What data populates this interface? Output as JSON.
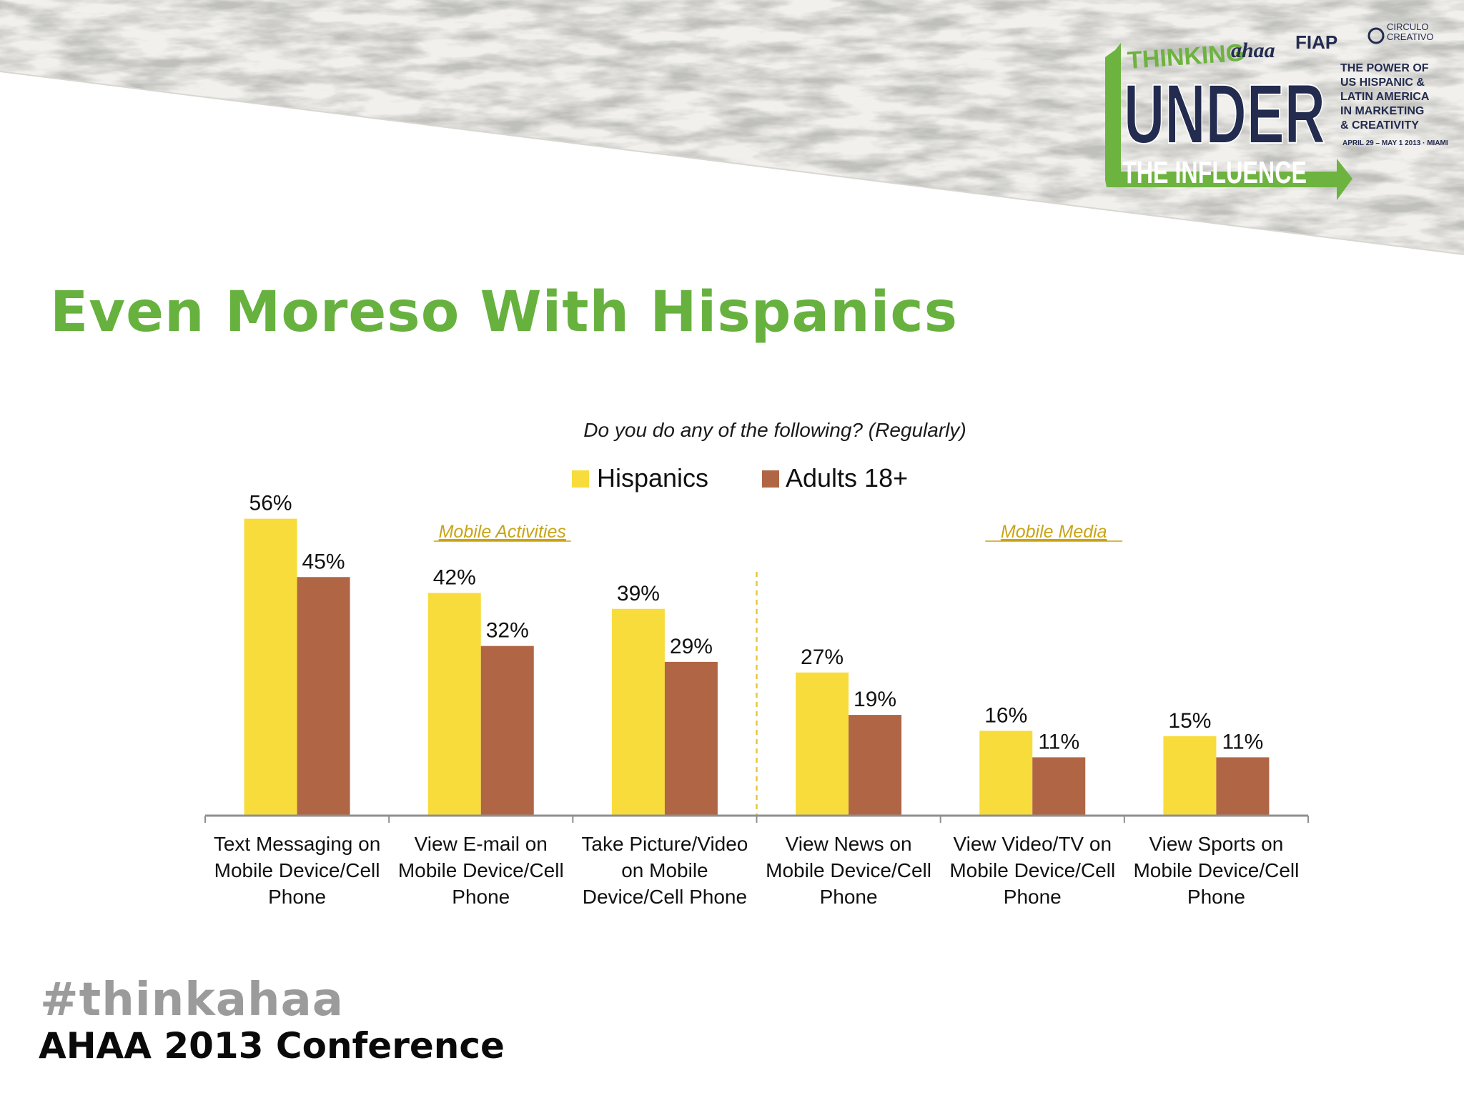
{
  "slide": {
    "title": "Even Moreso With Hispanics",
    "hashtag": "#thinkahaa",
    "conference": "AHAA 2013 Conference"
  },
  "logo": {
    "top_line": "THINKING",
    "main_word": "UNDER",
    "bottom_line": "THE INFLUENCE",
    "brand_ahaa": "ahaa",
    "brand_fiap": "FIAP",
    "brand_circulo_1": "CIRCULO",
    "brand_circulo_2": "CREATIVO",
    "tagline": [
      "THE POWER OF",
      "US HISPANIC &",
      "LATIN AMERICA",
      "IN MARKETING",
      "& CREATIVITY"
    ],
    "dates": "APRIL 29 – MAY 1 2013 · MIAMI",
    "colors": {
      "green": "#6db33f",
      "navy": "#232b4f"
    }
  },
  "colors": {
    "title_green": "#67b13f",
    "hispanics": "#f7dc3c",
    "adults": "#b06545",
    "section_label": "#c9a416",
    "divider": "#e7c63e",
    "axis": "#8f8f8f"
  },
  "chart_data": {
    "type": "bar",
    "title": "Do you do any of the following? (Regularly)",
    "xlabel": "",
    "ylabel": "",
    "ylim": [
      0,
      60
    ],
    "grid": false,
    "legend_position": "top-center",
    "categories": [
      [
        "Text Messaging on",
        "Mobile Device/Cell",
        "Phone"
      ],
      [
        "View E-mail on",
        "Mobile Device/Cell",
        "Phone"
      ],
      [
        "Take Picture/Video",
        "on Mobile",
        "Device/Cell Phone"
      ],
      [
        "View News on",
        "Mobile Device/Cell",
        "Phone"
      ],
      [
        "View Video/TV on",
        "Mobile Device/Cell",
        "Phone"
      ],
      [
        "View Sports on",
        "Mobile Device/Cell",
        "Phone"
      ]
    ],
    "series": [
      {
        "name": "Hispanics",
        "values": [
          56,
          42,
          39,
          27,
          16,
          15
        ],
        "labels": [
          "56%",
          "42%",
          "39%",
          "27%",
          "16%",
          "15%"
        ]
      },
      {
        "name": "Adults 18+",
        "values": [
          45,
          32,
          29,
          19,
          11,
          11
        ],
        "labels": [
          "45%",
          "32%",
          "29%",
          "19%",
          "11%",
          "11%"
        ]
      }
    ],
    "sections": [
      {
        "label": "Mobile Activities",
        "from": 0,
        "to": 2
      },
      {
        "label": "Mobile Media",
        "from": 3,
        "to": 5
      }
    ]
  }
}
